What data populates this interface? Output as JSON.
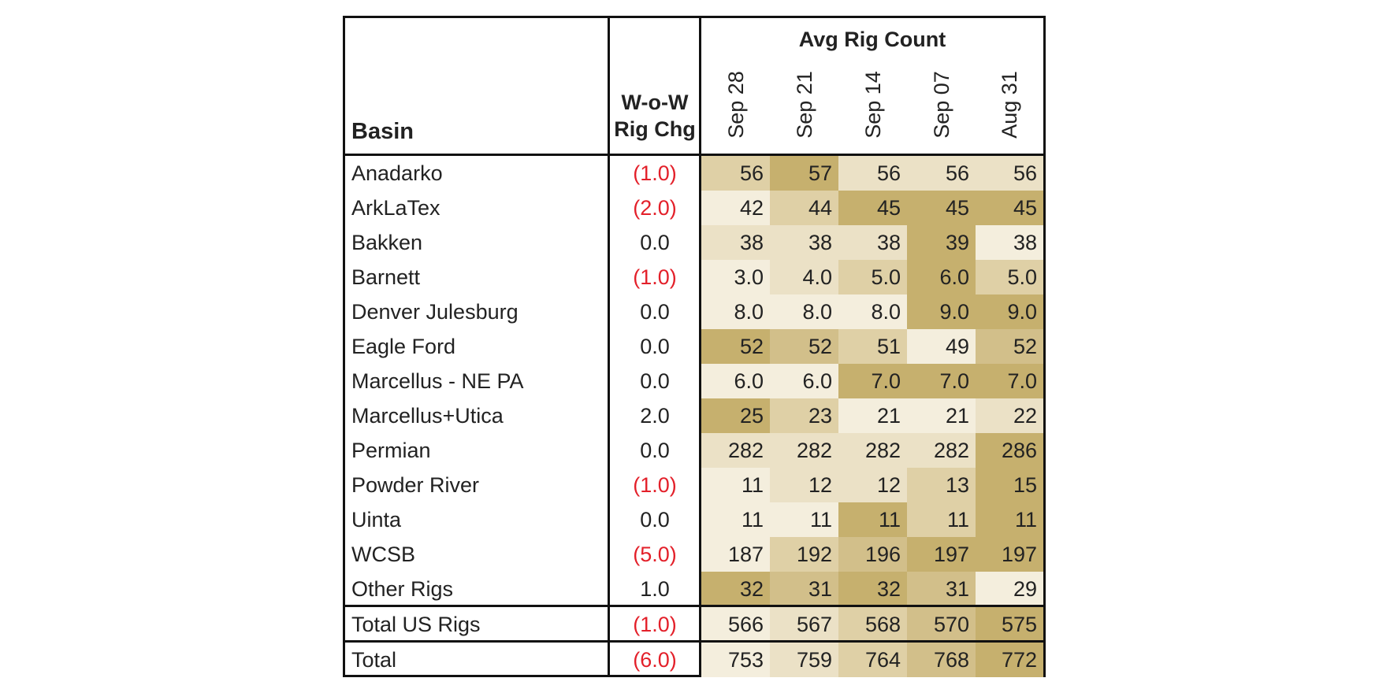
{
  "table": {
    "header": {
      "basin": "Basin",
      "wow_line1": "W-o-W",
      "wow_line2": "Rig Chg",
      "avg": "Avg Rig Count",
      "dates": [
        "Sep 28",
        "Sep 21",
        "Sep 14",
        "Sep 07",
        "Aug 31"
      ]
    },
    "rows": [
      {
        "basin": "Anadarko",
        "chg": "(1.0)",
        "negative": true,
        "values": [
          "56",
          "57",
          "56",
          "56",
          "56"
        ],
        "shades": [
          2,
          4,
          1,
          1,
          1
        ]
      },
      {
        "basin": "ArkLaTex",
        "chg": "(2.0)",
        "negative": true,
        "values": [
          "42",
          "44",
          "45",
          "45",
          "45"
        ],
        "shades": [
          0,
          2,
          4,
          4,
          4
        ]
      },
      {
        "basin": "Bakken",
        "chg": "0.0",
        "negative": false,
        "values": [
          "38",
          "38",
          "38",
          "39",
          "38"
        ],
        "shades": [
          1,
          1,
          1,
          4,
          0
        ]
      },
      {
        "basin": "Barnett",
        "chg": "(1.0)",
        "negative": true,
        "values": [
          "3.0",
          "4.0",
          "5.0",
          "6.0",
          "5.0"
        ],
        "shades": [
          0,
          1,
          2,
          4,
          2
        ]
      },
      {
        "basin": "Denver Julesburg",
        "chg": "0.0",
        "negative": false,
        "values": [
          "8.0",
          "8.0",
          "8.0",
          "9.0",
          "9.0"
        ],
        "shades": [
          0,
          0,
          0,
          4,
          4
        ]
      },
      {
        "basin": "Eagle Ford",
        "chg": "0.0",
        "negative": false,
        "values": [
          "52",
          "52",
          "51",
          "49",
          "52"
        ],
        "shades": [
          4,
          3,
          2,
          0,
          3
        ]
      },
      {
        "basin": "Marcellus - NE PA",
        "chg": "0.0",
        "negative": false,
        "values": [
          "6.0",
          "6.0",
          "7.0",
          "7.0",
          "7.0"
        ],
        "shades": [
          0,
          0,
          4,
          4,
          4
        ]
      },
      {
        "basin": "Marcellus+Utica",
        "chg": "2.0",
        "negative": false,
        "values": [
          "25",
          "23",
          "21",
          "21",
          "22"
        ],
        "shades": [
          4,
          2,
          0,
          0,
          1
        ]
      },
      {
        "basin": "Permian",
        "chg": "0.0",
        "negative": false,
        "values": [
          "282",
          "282",
          "282",
          "282",
          "286"
        ],
        "shades": [
          1,
          1,
          1,
          1,
          4
        ]
      },
      {
        "basin": "Powder River",
        "chg": "(1.0)",
        "negative": true,
        "values": [
          "11",
          "12",
          "12",
          "13",
          "15"
        ],
        "shades": [
          0,
          1,
          1,
          2,
          4
        ]
      },
      {
        "basin": "Uinta",
        "chg": "0.0",
        "negative": false,
        "values": [
          "11",
          "11",
          "11",
          "11",
          "11"
        ],
        "shades": [
          0,
          0,
          4,
          2,
          4
        ]
      },
      {
        "basin": "WCSB",
        "chg": "(5.0)",
        "negative": true,
        "values": [
          "187",
          "192",
          "196",
          "197",
          "197"
        ],
        "shades": [
          0,
          2,
          3,
          4,
          4
        ]
      },
      {
        "basin": "Other Rigs",
        "chg": "1.0",
        "negative": false,
        "values": [
          "32",
          "31",
          "32",
          "31",
          "29"
        ],
        "shades": [
          4,
          3,
          4,
          3,
          0
        ]
      }
    ],
    "total_us": {
      "basin": "Total US Rigs",
      "chg": "(1.0)",
      "negative": true,
      "values": [
        "566",
        "567",
        "568",
        "570",
        "575"
      ],
      "shades": [
        0,
        1,
        2,
        3,
        4
      ]
    },
    "total": {
      "basin": "Total",
      "chg": "(6.0)",
      "negative": true,
      "values": [
        "753",
        "759",
        "764",
        "768",
        "772"
      ],
      "shades": [
        0,
        1,
        2,
        3,
        4
      ]
    },
    "colors": {
      "shade_scale": [
        "#f4eedd",
        "#ebe1c6",
        "#dfd0a6",
        "#d2bf8a",
        "#c6b06e"
      ],
      "negative_text": "#e3202a"
    }
  }
}
